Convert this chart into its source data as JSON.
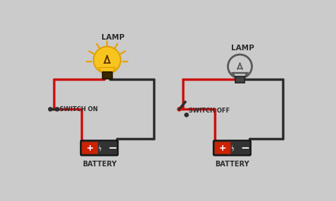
{
  "bg_color": "#cbcbcb",
  "wire_red": "#cc1111",
  "wire_dark": "#2d2d2d",
  "battery_red": "#cc2200",
  "battery_dark": "#333333",
  "lamp_on_fill": "#f8c520",
  "lamp_on_stroke": "#e0a000",
  "lamp_off_fill": "none",
  "lamp_off_stroke": "#555555",
  "text_color": "#2d2d2d",
  "label_lamp": "LAMP",
  "label_switch_on": "SWITCH ON",
  "label_switch_off": "SWITCH OFF",
  "label_battery": "BATTERY"
}
